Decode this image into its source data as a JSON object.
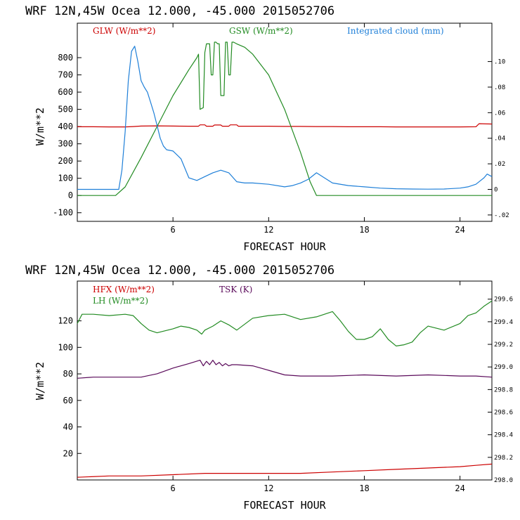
{
  "colors": {
    "glw": "#cc0000",
    "gsw": "#228b22",
    "cloud": "#1e7fd8",
    "hfx": "#cc0000",
    "lh": "#228b22",
    "tsk": "#5a0a5a"
  },
  "chart_data": [
    {
      "type": "line",
      "title": "WRF  12N,45W Ocea  12.000, -45.000  2015052706",
      "xlabel": "FORECAST HOUR",
      "ylabel": "W/m**2",
      "xlim": [
        0,
        26
      ],
      "ylim": [
        -150,
        1000
      ],
      "right_ylim": [
        -0.025,
        0.13
      ],
      "xticks": [
        6,
        12,
        18,
        24
      ],
      "xtick_labels": [
        "6",
        "12",
        "18",
        "24"
      ],
      "yticks": [
        -100,
        0,
        100,
        200,
        300,
        400,
        500,
        600,
        700,
        800
      ],
      "ytick_labels": [
        "-100",
        "0",
        "100",
        "200",
        "300",
        "400",
        "500",
        "600",
        "700",
        "800"
      ],
      "right_yticks": [
        -0.02,
        0,
        0.02,
        0.04,
        0.06,
        0.08,
        0.1
      ],
      "right_ytick_labels": [
        "-.02",
        "0",
        ".02",
        ".04",
        ".06",
        ".08",
        ".10"
      ],
      "series": [
        {
          "name": "GLW (W/m**2)",
          "axis": "left",
          "x": [
            0,
            1,
            2,
            3,
            3.5,
            4,
            5,
            6,
            7,
            7.6,
            7.7,
            8,
            8.1,
            8.5,
            8.6,
            9,
            9.1,
            9.5,
            9.6,
            10,
            10.1,
            11,
            12,
            13,
            14,
            15,
            16,
            17,
            18,
            19,
            20,
            21,
            22,
            23,
            24,
            25,
            25.2,
            26
          ],
          "y": [
            399,
            399,
            398,
            398,
            400,
            403,
            404,
            403,
            402,
            402,
            410,
            410,
            402,
            402,
            409,
            409,
            402,
            402,
            410,
            410,
            402,
            402,
            402,
            401,
            401,
            400,
            400,
            399,
            399,
            399,
            398,
            398,
            398,
            398,
            398,
            399,
            417,
            415
          ]
        },
        {
          "name": "GSW (W/m**2)",
          "axis": "left",
          "x": [
            0,
            1,
            2,
            2.4,
            3,
            4,
            5,
            6,
            7,
            7.5,
            7.6,
            7.7,
            7.9,
            8.0,
            8.1,
            8.2,
            8.3,
            8.4,
            8.5,
            8.6,
            8.7,
            8.8,
            8.9,
            9.0,
            9.2,
            9.3,
            9.4,
            9.5,
            9.6,
            9.7,
            9.8,
            10.0,
            10.5,
            11,
            12,
            13,
            14,
            14.6,
            15,
            16,
            18,
            20,
            22,
            24,
            26
          ],
          "y": [
            0,
            0,
            0,
            0,
            50,
            220,
            400,
            580,
            730,
            800,
            820,
            500,
            510,
            830,
            880,
            880,
            880,
            700,
            700,
            890,
            890,
            880,
            880,
            580,
            580,
            890,
            890,
            700,
            700,
            890,
            890,
            880,
            860,
            820,
            700,
            500,
            250,
            80,
            0,
            0,
            0,
            0,
            0,
            0,
            0
          ]
        },
        {
          "name": "Integrated cloud (mm)",
          "axis": "right",
          "x": [
            0,
            1,
            2,
            2.4,
            2.6,
            2.8,
            3.0,
            3.2,
            3.4,
            3.6,
            3.8,
            4.0,
            4.2,
            4.4,
            4.6,
            4.8,
            5.0,
            5.2,
            5.4,
            5.6,
            6.0,
            6.5,
            7.0,
            7.5,
            8.0,
            8.5,
            9.0,
            9.5,
            10.0,
            10.5,
            11,
            12,
            13,
            13.5,
            14,
            14.5,
            15,
            15.5,
            16,
            17,
            18,
            19,
            20,
            21,
            22,
            23,
            24,
            24.5,
            25,
            25.5,
            25.7,
            26
          ],
          "y": [
            0.0,
            0.0,
            0.0,
            0.0,
            0.0,
            0.015,
            0.045,
            0.085,
            0.108,
            0.112,
            0.1,
            0.085,
            0.08,
            0.076,
            0.068,
            0.06,
            0.05,
            0.04,
            0.034,
            0.031,
            0.03,
            0.024,
            0.009,
            0.007,
            0.01,
            0.013,
            0.015,
            0.013,
            0.006,
            0.005,
            0.005,
            0.004,
            0.002,
            0.003,
            0.005,
            0.008,
            0.013,
            0.009,
            0.005,
            0.003,
            0.002,
            0.001,
            0.0005,
            0.0003,
            0.0002,
            0.0003,
            0.001,
            0.002,
            0.004,
            0.009,
            0.012,
            0.01
          ]
        }
      ]
    },
    {
      "type": "line",
      "title": "WRF  12N,45W Ocea  12.000, -45.000  2015052706",
      "xlabel": "FORECAST HOUR",
      "ylabel": "W/m**2",
      "xlim": [
        0,
        26
      ],
      "ylim": [
        0,
        150
      ],
      "right_ylim": [
        298.0,
        299.76
      ],
      "xticks": [
        6,
        12,
        18,
        24
      ],
      "xtick_labels": [
        "6",
        "12",
        "18",
        "24"
      ],
      "yticks": [
        20,
        40,
        60,
        80,
        100,
        120
      ],
      "ytick_labels": [
        "20",
        "40",
        "60",
        "80",
        "100",
        "120"
      ],
      "right_yticks": [
        298.0,
        298.2,
        298.4,
        298.6,
        298.8,
        299.0,
        299.2,
        299.4,
        299.6
      ],
      "right_ytick_labels": [
        "298.0",
        "298.2",
        "298.4",
        "298.6",
        "298.8",
        "299.0",
        "299.2",
        "299.4",
        "299.6"
      ],
      "series": [
        {
          "name": "HFX (W/m**2)",
          "axis": "left",
          "x": [
            0,
            2,
            4,
            6,
            8,
            10,
            12,
            14,
            16,
            18,
            20,
            22,
            24,
            25,
            26
          ],
          "y": [
            2,
            3,
            3,
            4,
            5,
            5,
            5,
            5,
            6,
            7,
            8,
            9,
            10,
            11,
            12
          ]
        },
        {
          "name": "LH (W/m**2)",
          "axis": "left",
          "x": [
            0,
            0.3,
            1,
            2,
            3,
            3.5,
            4,
            4.5,
            5,
            6,
            6.5,
            7,
            7.5,
            7.8,
            8,
            8.5,
            9,
            9.5,
            10,
            11,
            12,
            13,
            14,
            15,
            16,
            16.5,
            17,
            17.5,
            18,
            18.5,
            19,
            19.5,
            20,
            20.5,
            21,
            21.5,
            22,
            23,
            24,
            24.5,
            25,
            25.5,
            26
          ],
          "y": [
            118,
            125,
            125,
            124,
            125,
            124,
            118,
            113,
            111,
            114,
            116,
            115,
            113,
            110,
            113,
            116,
            120,
            117,
            113,
            122,
            124,
            125,
            121,
            123,
            127,
            120,
            112,
            106,
            106,
            108,
            114,
            106,
            101,
            102,
            104,
            111,
            116,
            113,
            118,
            124,
            126,
            131,
            135
          ]
        },
        {
          "name": "TSK (K)",
          "axis": "right",
          "x": [
            0,
            1,
            2,
            3,
            4,
            5,
            6,
            7,
            7.7,
            7.9,
            8.1,
            8.3,
            8.5,
            8.7,
            8.9,
            9.1,
            9.3,
            9.5,
            9.7,
            10,
            11,
            12,
            13,
            14,
            16,
            18,
            20,
            22,
            24,
            25,
            26
          ],
          "y": [
            298.9,
            298.91,
            298.91,
            298.91,
            298.91,
            298.94,
            298.99,
            299.03,
            299.06,
            299.01,
            299.05,
            299.02,
            299.06,
            299.02,
            299.04,
            299.01,
            299.03,
            299.01,
            299.02,
            299.02,
            299.01,
            298.97,
            298.93,
            298.92,
            298.92,
            298.93,
            298.92,
            298.93,
            298.92,
            298.92,
            298.91
          ]
        }
      ]
    }
  ]
}
